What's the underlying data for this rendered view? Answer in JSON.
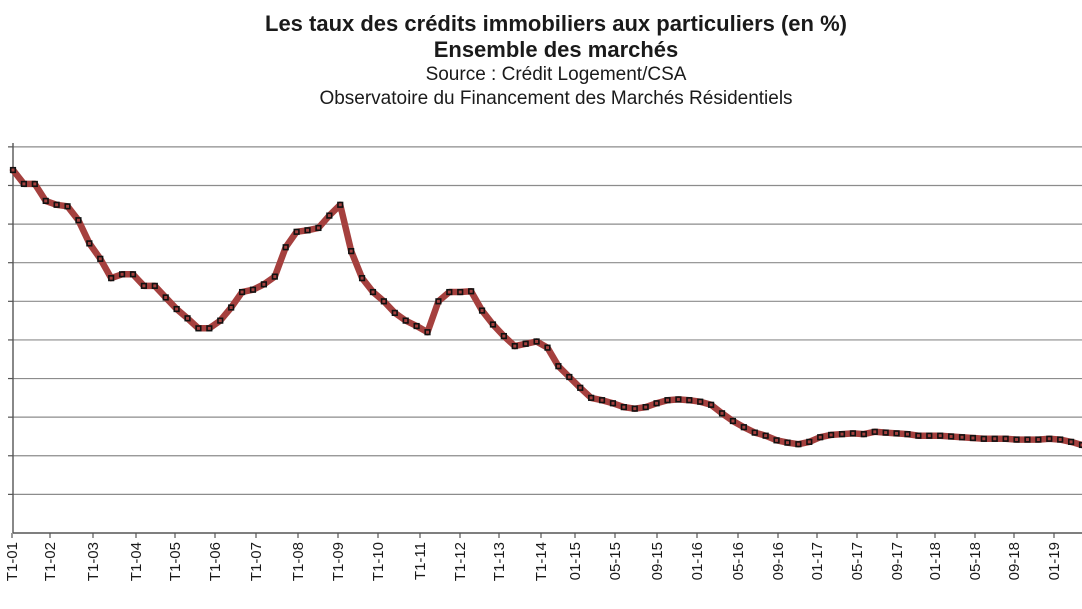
{
  "title": "Les taux des crédits immobiliers aux particuliers (en %)",
  "subtitle": "Ensemble des marchés",
  "source": "Source : Crédit Logement/CSA",
  "observatory": "Observatoire du Financement des Marchés Résidentiels",
  "colors": {
    "line": "#a5403e",
    "marker": "#111111",
    "grid": "#8c8c8c"
  },
  "chart_data": {
    "type": "line",
    "title": "Les taux des crédits immobiliers aux particuliers (en %)",
    "subtitle": "Ensemble des marchés",
    "ylim": [
      0.8,
      5.85
    ],
    "y_tick_values": [
      1.3,
      1.8,
      2.3,
      2.8,
      3.3,
      3.8,
      4.3,
      4.8,
      5.3,
      5.8
    ],
    "y_tick_labels_visible": false,
    "grid": "horizontal",
    "x_tick_labels": [
      "T1-01",
      "T1-02",
      "T1-03",
      "T1-04",
      "T1-05",
      "T1-06",
      "T1-07",
      "T1-08",
      "T1-09",
      "T1-10",
      "T1-11",
      "T1-12",
      "T1-13",
      "T1-14",
      "01-15",
      "05-15",
      "09-15",
      "01-16",
      "05-16",
      "09-16",
      "01-17",
      "05-17",
      "09-17",
      "01-18",
      "05-18",
      "09-18",
      "01-19"
    ],
    "series": [
      {
        "values": [
          5.5,
          5.32,
          5.32,
          5.1,
          5.05,
          5.03,
          4.85,
          4.55,
          4.35,
          4.1,
          4.15,
          4.15,
          4.0,
          4.0,
          3.85,
          3.7,
          3.58,
          3.45,
          3.45,
          3.55,
          3.72,
          3.92,
          3.95,
          4.02,
          4.12,
          4.5,
          4.7,
          4.72,
          4.75,
          4.91,
          5.05,
          4.45,
          4.1,
          3.92,
          3.8,
          3.65,
          3.55,
          3.48,
          3.4,
          3.8,
          3.92,
          3.92,
          3.93,
          3.68,
          3.5,
          3.35,
          3.22,
          3.25,
          3.28,
          3.2,
          2.96,
          2.82,
          2.68,
          2.55,
          2.52,
          2.48,
          2.43,
          2.41,
          2.43,
          2.48,
          2.52,
          2.53,
          2.52,
          2.5,
          2.46,
          2.35,
          2.25,
          2.17,
          2.1,
          2.06,
          2.0,
          1.97,
          1.95,
          1.98,
          2.04,
          2.07,
          2.08,
          2.09,
          2.08,
          2.11,
          2.1,
          2.09,
          2.08,
          2.06,
          2.06,
          2.06,
          2.05,
          2.04,
          2.03,
          2.02,
          2.02,
          2.02,
          2.01,
          2.01,
          2.01,
          2.02,
          2.01,
          1.98,
          1.94
        ]
      }
    ]
  }
}
